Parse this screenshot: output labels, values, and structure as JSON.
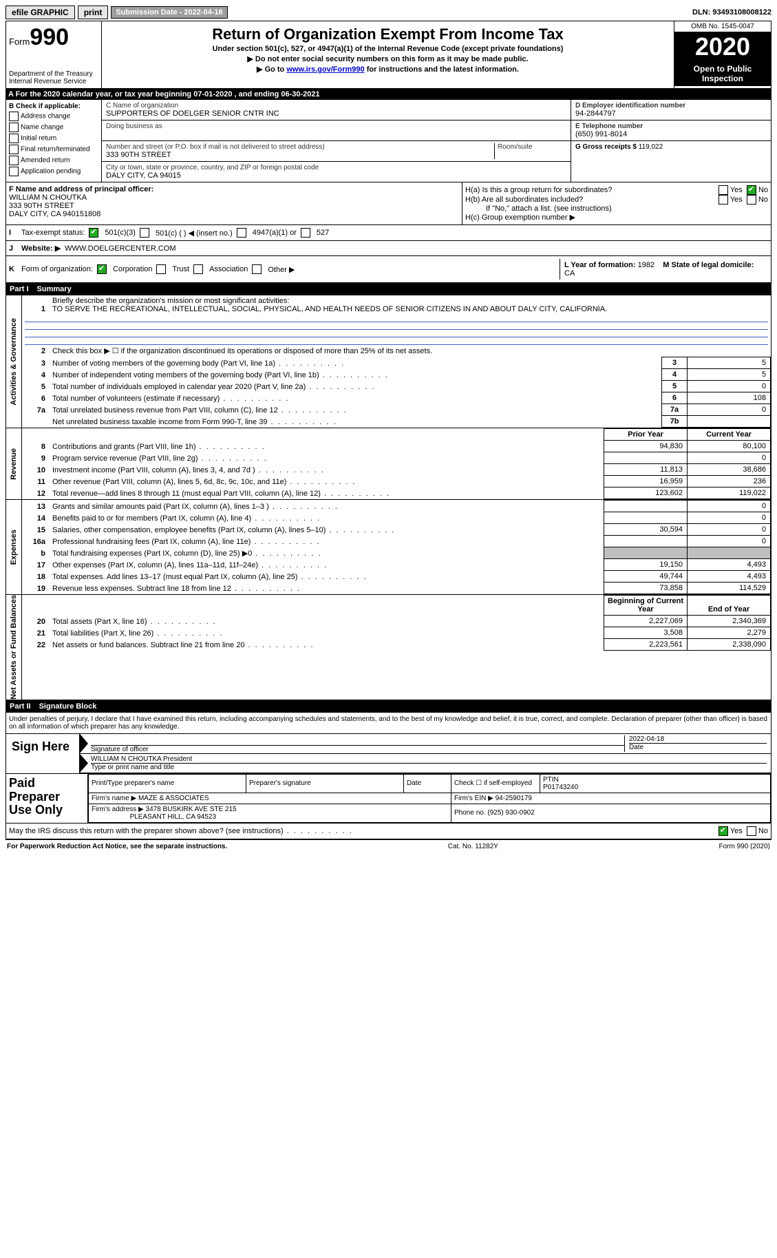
{
  "topbar": {
    "efile": "efile GRAPHIC",
    "print": "print",
    "sub_label": "Submission Date - ",
    "sub_date": "2022-04-18",
    "dln_label": "DLN: ",
    "dln": "93493108008122"
  },
  "header": {
    "form_label": "Form",
    "form_num": "990",
    "dept": "Department of the Treasury",
    "irs": "Internal Revenue Service",
    "title": "Return of Organization Exempt From Income Tax",
    "subtitle": "Under section 501(c), 527, or 4947(a)(1) of the Internal Revenue Code (except private foundations)",
    "note1": "▶ Do not enter social security numbers on this form as it may be made public.",
    "note2_pre": "▶ Go to ",
    "note2_link": "www.irs.gov/Form990",
    "note2_post": " for instructions and the latest information.",
    "omb": "OMB No. 1545-0047",
    "year": "2020",
    "open": "Open to Public Inspection"
  },
  "period": {
    "text_a": "For the 2020 calendar year, or tax year beginning ",
    "begin": "07-01-2020",
    "text_b": " , and ending ",
    "end": "06-30-2021"
  },
  "boxB": {
    "label": "B Check if applicable:",
    "items": [
      "Address change",
      "Name change",
      "Initial return",
      "Final return/terminated",
      "Amended return",
      "Application pending"
    ]
  },
  "boxC": {
    "name_label": "C Name of organization",
    "name": "SUPPORTERS OF DOELGER SENIOR CNTR INC",
    "dba_label": "Doing business as",
    "addr_label": "Number and street (or P.O. box if mail is not delivered to street address)",
    "room_label": "Room/suite",
    "addr": "333 90TH STREET",
    "city_label": "City or town, state or province, country, and ZIP or foreign postal code",
    "city": "DALY CITY, CA  94015"
  },
  "boxD": {
    "label": "D Employer identification number",
    "value": "94-2844797"
  },
  "boxE": {
    "label": "E Telephone number",
    "value": "(650) 991-8014"
  },
  "boxG": {
    "label": "G Gross receipts $",
    "value": "119,022"
  },
  "boxF": {
    "label": "F Name and address of principal officer:",
    "name": "WILLIAM N CHOUTKA",
    "addr1": "333 90TH STREET",
    "addr2": "DALY CITY, CA  940151808"
  },
  "boxH": {
    "a": "H(a)  Is this a group return for subordinates?",
    "b": "H(b)  Are all subordinates included?",
    "b_note": "If \"No,\" attach a list. (see instructions)",
    "c": "H(c)  Group exemption number ▶",
    "yes": "Yes",
    "no": "No"
  },
  "rowI": {
    "label": "I",
    "text": "Tax-exempt status:",
    "opt1": "501(c)(3)",
    "opt2": "501(c) (   ) ◀ (insert no.)",
    "opt3": "4947(a)(1) or",
    "opt4": "527"
  },
  "rowJ": {
    "label": "J",
    "text": "Website: ▶",
    "value": "WWW.DOELGERCENTER.COM"
  },
  "rowK": {
    "label": "K",
    "text": "Form of organization:",
    "opts": [
      "Corporation",
      "Trust",
      "Association",
      "Other ▶"
    ]
  },
  "rowLM": {
    "l_label": "L Year of formation:",
    "l_val": "1982",
    "m_label": "M State of legal domicile:",
    "m_val": "CA"
  },
  "part1": {
    "label": "Part I",
    "title": "Summary",
    "q1_label": "1",
    "q1_text": "Briefly describe the organization's mission or most significant activities:",
    "q1_val": "TO SERVE THE RECREATIONAL, INTELLECTUAL, SOCIAL, PHYSICAL, AND HEALTH NEEDS OF SENIOR CITIZENS IN AND ABOUT DALY CITY, CALIFORNIA.",
    "q2_text": "Check this box ▶ ☐  if the organization discontinued its operations or disposed of more than 25% of its net assets.",
    "sides": [
      "Activities & Governance",
      "Revenue",
      "Expenses",
      "Net Assets or Fund Balances"
    ],
    "gov": [
      {
        "n": "3",
        "t": "Number of voting members of the governing body (Part VI, line 1a)",
        "b": "3",
        "v": "5"
      },
      {
        "n": "4",
        "t": "Number of independent voting members of the governing body (Part VI, line 1b)",
        "b": "4",
        "v": "5"
      },
      {
        "n": "5",
        "t": "Total number of individuals employed in calendar year 2020 (Part V, line 2a)",
        "b": "5",
        "v": "0"
      },
      {
        "n": "6",
        "t": "Total number of volunteers (estimate if necessary)",
        "b": "6",
        "v": "108"
      },
      {
        "n": "7a",
        "t": "Total unrelated business revenue from Part VIII, column (C), line 12",
        "b": "7a",
        "v": "0"
      },
      {
        "n": "",
        "t": "Net unrelated business taxable income from Form 990-T, line 39",
        "b": "7b",
        "v": ""
      }
    ],
    "col_prior": "Prior Year",
    "col_current": "Current Year",
    "rev": [
      {
        "n": "8",
        "t": "Contributions and grants (Part VIII, line 1h)",
        "p": "94,830",
        "c": "80,100"
      },
      {
        "n": "9",
        "t": "Program service revenue (Part VIII, line 2g)",
        "p": "",
        "c": "0"
      },
      {
        "n": "10",
        "t": "Investment income (Part VIII, column (A), lines 3, 4, and 7d )",
        "p": "11,813",
        "c": "38,686"
      },
      {
        "n": "11",
        "t": "Other revenue (Part VIII, column (A), lines 5, 6d, 8c, 9c, 10c, and 11e)",
        "p": "16,959",
        "c": "236"
      },
      {
        "n": "12",
        "t": "Total revenue—add lines 8 through 11 (must equal Part VIII, column (A), line 12)",
        "p": "123,602",
        "c": "119,022"
      }
    ],
    "exp": [
      {
        "n": "13",
        "t": "Grants and similar amounts paid (Part IX, column (A), lines 1–3 )",
        "p": "",
        "c": "0"
      },
      {
        "n": "14",
        "t": "Benefits paid to or for members (Part IX, column (A), line 4)",
        "p": "",
        "c": "0"
      },
      {
        "n": "15",
        "t": "Salaries, other compensation, employee benefits (Part IX, column (A), lines 5–10)",
        "p": "30,594",
        "c": "0"
      },
      {
        "n": "16a",
        "t": "Professional fundraising fees (Part IX, column (A), line 11e)",
        "p": "",
        "c": "0"
      },
      {
        "n": "b",
        "t": "Total fundraising expenses (Part IX, column (D), line 25) ▶0",
        "p": "shade",
        "c": "shade"
      },
      {
        "n": "17",
        "t": "Other expenses (Part IX, column (A), lines 11a–11d, 11f–24e)",
        "p": "19,150",
        "c": "4,493"
      },
      {
        "n": "18",
        "t": "Total expenses. Add lines 13–17 (must equal Part IX, column (A), line 25)",
        "p": "49,744",
        "c": "4,493"
      },
      {
        "n": "19",
        "t": "Revenue less expenses. Subtract line 18 from line 12",
        "p": "73,858",
        "c": "114,529"
      }
    ],
    "col_beg": "Beginning of Current Year",
    "col_end": "End of Year",
    "net": [
      {
        "n": "20",
        "t": "Total assets (Part X, line 16)",
        "p": "2,227,069",
        "c": "2,340,369"
      },
      {
        "n": "21",
        "t": "Total liabilities (Part X, line 26)",
        "p": "3,508",
        "c": "2,279"
      },
      {
        "n": "22",
        "t": "Net assets or fund balances. Subtract line 21 from line 20",
        "p": "2,223,561",
        "c": "2,338,090"
      }
    ]
  },
  "part2": {
    "label": "Part II",
    "title": "Signature Block",
    "decl": "Under penalties of perjury, I declare that I have examined this return, including accompanying schedules and statements, and to the best of my knowledge and belief, it is true, correct, and complete. Declaration of preparer (other than officer) is based on all information of which preparer has any knowledge.",
    "sign_here": "Sign Here",
    "sig_officer": "Signature of officer",
    "date_label": "Date",
    "date_val": "2022-04-18",
    "name_title": "WILLIAM N CHOUTKA  President",
    "type_label": "Type or print name and title",
    "paid": "Paid Preparer Use Only",
    "p_name_label": "Print/Type preparer's name",
    "p_sig_label": "Preparer's signature",
    "p_check": "Check ☐ if self-employed",
    "ptin_label": "PTIN",
    "ptin": "P01743240",
    "firm_name_label": "Firm's name   ▶",
    "firm_name": "MAZE & ASSOCIATES",
    "firm_ein_label": "Firm's EIN ▶",
    "firm_ein": "94-2590179",
    "firm_addr_label": "Firm's address ▶",
    "firm_addr1": "3478 BUSKIRK AVE STE 215",
    "firm_addr2": "PLEASANT HILL, CA  94523",
    "phone_label": "Phone no.",
    "phone": "(925) 930-0902",
    "discuss": "May the IRS discuss this return with the preparer shown above? (see instructions)"
  },
  "footer": {
    "left": "For Paperwork Reduction Act Notice, see the separate instructions.",
    "mid": "Cat. No. 11282Y",
    "right": "Form 990 (2020)"
  }
}
